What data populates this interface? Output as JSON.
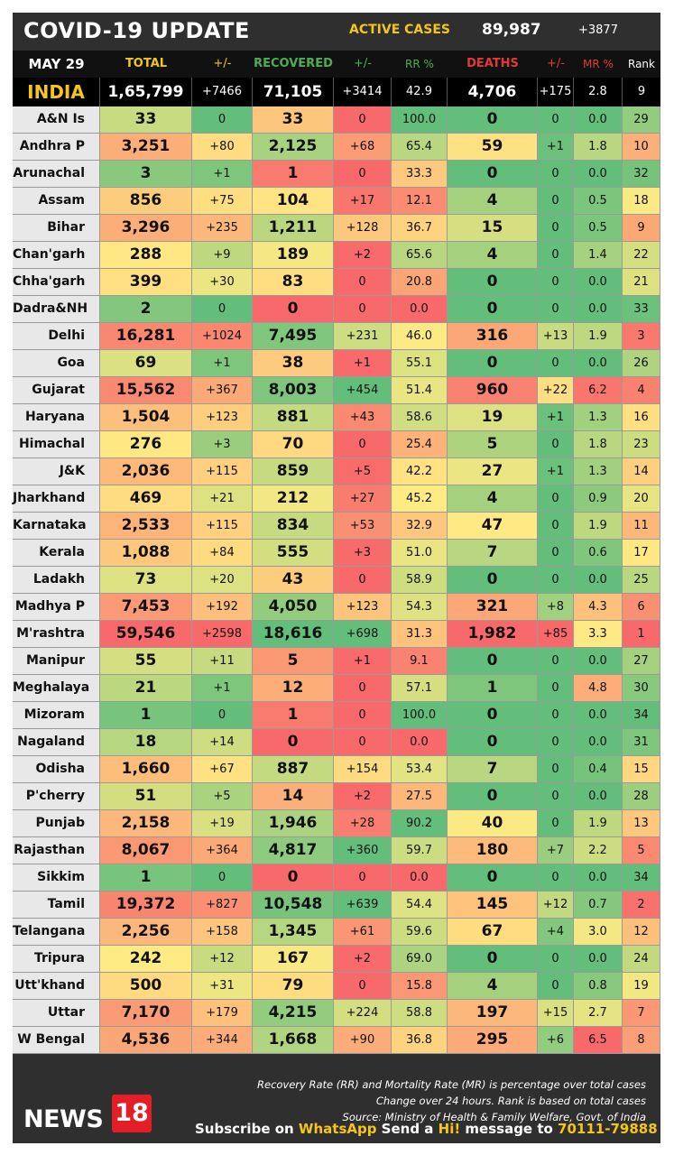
{
  "header": {
    "title": "COVID-19 UPDATE",
    "active_label": "ACTIVE CASES",
    "active_value": "89,987",
    "active_change": "+3877"
  },
  "columns": {
    "date": "MAY 29",
    "total": "TOTAL",
    "total_change": "+/-",
    "recovered": "RECOVERED",
    "recovered_change": "+/-",
    "rr": "RR %",
    "deaths": "DEATHS",
    "deaths_change": "+/-",
    "mr": "MR %",
    "rank": "Rank"
  },
  "colors": {
    "header_yellow": "#f5c518",
    "recovered_green": "#4caf50",
    "deaths_red": "#e53935",
    "scale_green": "#63be7b",
    "scale_yellow": "#ffeb84",
    "scale_red": "#f8696b"
  },
  "chart_data": {
    "type": "table",
    "title": "COVID-19 UPDATE",
    "india": {
      "name": "INDIA",
      "total": "1,65,799",
      "total_change": "+7466",
      "recovered": "71,105",
      "recovered_change": "+3414",
      "rr": "42.9",
      "deaths": "4,706",
      "deaths_change": "+175",
      "mr": "2.8",
      "rank": "9"
    },
    "rows": [
      {
        "name": "A&N Is",
        "total": "33",
        "total_change": "0",
        "recovered": "33",
        "recovered_change": "0",
        "rr": "100.0",
        "deaths": "0",
        "deaths_change": "0",
        "mr": "0.0",
        "rank": "29"
      },
      {
        "name": "Andhra P",
        "total": "3,251",
        "total_change": "+80",
        "recovered": "2,125",
        "recovered_change": "+68",
        "rr": "65.4",
        "deaths": "59",
        "deaths_change": "+1",
        "mr": "1.8",
        "rank": "10"
      },
      {
        "name": "Arunachal",
        "total": "3",
        "total_change": "+1",
        "recovered": "1",
        "recovered_change": "0",
        "rr": "33.3",
        "deaths": "0",
        "deaths_change": "0",
        "mr": "0.0",
        "rank": "32"
      },
      {
        "name": "Assam",
        "total": "856",
        "total_change": "+75",
        "recovered": "104",
        "recovered_change": "+17",
        "rr": "12.1",
        "deaths": "4",
        "deaths_change": "0",
        "mr": "0.5",
        "rank": "18"
      },
      {
        "name": "Bihar",
        "total": "3,296",
        "total_change": "+235",
        "recovered": "1,211",
        "recovered_change": "+128",
        "rr": "36.7",
        "deaths": "15",
        "deaths_change": "0",
        "mr": "0.5",
        "rank": "9"
      },
      {
        "name": "Chan'garh",
        "total": "288",
        "total_change": "+9",
        "recovered": "189",
        "recovered_change": "+2",
        "rr": "65.6",
        "deaths": "4",
        "deaths_change": "0",
        "mr": "1.4",
        "rank": "22"
      },
      {
        "name": "Chha'garh",
        "total": "399",
        "total_change": "+30",
        "recovered": "83",
        "recovered_change": "0",
        "rr": "20.8",
        "deaths": "0",
        "deaths_change": "0",
        "mr": "0.0",
        "rank": "21"
      },
      {
        "name": "Dadra&NH",
        "total": "2",
        "total_change": "0",
        "recovered": "0",
        "recovered_change": "0",
        "rr": "0.0",
        "deaths": "0",
        "deaths_change": "0",
        "mr": "0.0",
        "rank": "33"
      },
      {
        "name": "Delhi",
        "total": "16,281",
        "total_change": "+1024",
        "recovered": "7,495",
        "recovered_change": "+231",
        "rr": "46.0",
        "deaths": "316",
        "deaths_change": "+13",
        "mr": "1.9",
        "rank": "3"
      },
      {
        "name": "Goa",
        "total": "69",
        "total_change": "+1",
        "recovered": "38",
        "recovered_change": "+1",
        "rr": "55.1",
        "deaths": "0",
        "deaths_change": "0",
        "mr": "0.0",
        "rank": "26"
      },
      {
        "name": "Gujarat",
        "total": "15,562",
        "total_change": "+367",
        "recovered": "8,003",
        "recovered_change": "+454",
        "rr": "51.4",
        "deaths": "960",
        "deaths_change": "+22",
        "mr": "6.2",
        "rank": "4"
      },
      {
        "name": "Haryana",
        "total": "1,504",
        "total_change": "+123",
        "recovered": "881",
        "recovered_change": "+43",
        "rr": "58.6",
        "deaths": "19",
        "deaths_change": "+1",
        "mr": "1.3",
        "rank": "16"
      },
      {
        "name": "Himachal",
        "total": "276",
        "total_change": "+3",
        "recovered": "70",
        "recovered_change": "0",
        "rr": "25.4",
        "deaths": "5",
        "deaths_change": "0",
        "mr": "1.8",
        "rank": "23"
      },
      {
        "name": "J&K",
        "total": "2,036",
        "total_change": "+115",
        "recovered": "859",
        "recovered_change": "+5",
        "rr": "42.2",
        "deaths": "27",
        "deaths_change": "+1",
        "mr": "1.3",
        "rank": "14"
      },
      {
        "name": "Jharkhand",
        "total": "469",
        "total_change": "+21",
        "recovered": "212",
        "recovered_change": "+27",
        "rr": "45.2",
        "deaths": "4",
        "deaths_change": "0",
        "mr": "0.9",
        "rank": "20"
      },
      {
        "name": "Karnataka",
        "total": "2,533",
        "total_change": "+115",
        "recovered": "834",
        "recovered_change": "+53",
        "rr": "32.9",
        "deaths": "47",
        "deaths_change": "0",
        "mr": "1.9",
        "rank": "11"
      },
      {
        "name": "Kerala",
        "total": "1,088",
        "total_change": "+84",
        "recovered": "555",
        "recovered_change": "+3",
        "rr": "51.0",
        "deaths": "7",
        "deaths_change": "0",
        "mr": "0.6",
        "rank": "17"
      },
      {
        "name": "Ladakh",
        "total": "73",
        "total_change": "+20",
        "recovered": "43",
        "recovered_change": "0",
        "rr": "58.9",
        "deaths": "0",
        "deaths_change": "0",
        "mr": "0.0",
        "rank": "25"
      },
      {
        "name": "Madhya P",
        "total": "7,453",
        "total_change": "+192",
        "recovered": "4,050",
        "recovered_change": "+123",
        "rr": "54.3",
        "deaths": "321",
        "deaths_change": "+8",
        "mr": "4.3",
        "rank": "6"
      },
      {
        "name": "M'rashtra",
        "total": "59,546",
        "total_change": "+2598",
        "recovered": "18,616",
        "recovered_change": "+698",
        "rr": "31.3",
        "deaths": "1,982",
        "deaths_change": "+85",
        "mr": "3.3",
        "rank": "1"
      },
      {
        "name": "Manipur",
        "total": "55",
        "total_change": "+11",
        "recovered": "5",
        "recovered_change": "+1",
        "rr": "9.1",
        "deaths": "0",
        "deaths_change": "0",
        "mr": "0.0",
        "rank": "27"
      },
      {
        "name": "Meghalaya",
        "total": "21",
        "total_change": "+1",
        "recovered": "12",
        "recovered_change": "0",
        "rr": "57.1",
        "deaths": "1",
        "deaths_change": "0",
        "mr": "4.8",
        "rank": "30"
      },
      {
        "name": "Mizoram",
        "total": "1",
        "total_change": "0",
        "recovered": "1",
        "recovered_change": "0",
        "rr": "100.0",
        "deaths": "0",
        "deaths_change": "0",
        "mr": "0.0",
        "rank": "34"
      },
      {
        "name": "Nagaland",
        "total": "18",
        "total_change": "+14",
        "recovered": "0",
        "recovered_change": "0",
        "rr": "0.0",
        "deaths": "0",
        "deaths_change": "0",
        "mr": "0.0",
        "rank": "31"
      },
      {
        "name": "Odisha",
        "total": "1,660",
        "total_change": "+67",
        "recovered": "887",
        "recovered_change": "+154",
        "rr": "53.4",
        "deaths": "7",
        "deaths_change": "0",
        "mr": "0.4",
        "rank": "15"
      },
      {
        "name": "P'cherry",
        "total": "51",
        "total_change": "+5",
        "recovered": "14",
        "recovered_change": "+2",
        "rr": "27.5",
        "deaths": "0",
        "deaths_change": "0",
        "mr": "0.0",
        "rank": "28"
      },
      {
        "name": "Punjab",
        "total": "2,158",
        "total_change": "+19",
        "recovered": "1,946",
        "recovered_change": "+28",
        "rr": "90.2",
        "deaths": "40",
        "deaths_change": "0",
        "mr": "1.9",
        "rank": "13"
      },
      {
        "name": "Rajasthan",
        "total": "8,067",
        "total_change": "+364",
        "recovered": "4,817",
        "recovered_change": "+360",
        "rr": "59.7",
        "deaths": "180",
        "deaths_change": "+7",
        "mr": "2.2",
        "rank": "5"
      },
      {
        "name": "Sikkim",
        "total": "1",
        "total_change": "0",
        "recovered": "0",
        "recovered_change": "0",
        "rr": "0.0",
        "deaths": "0",
        "deaths_change": "0",
        "mr": "0.0",
        "rank": "34"
      },
      {
        "name": "Tamil Nadu",
        "total": "19,372",
        "total_change": "+827",
        "recovered": "10,548",
        "recovered_change": "+639",
        "rr": "54.4",
        "deaths": "145",
        "deaths_change": "+12",
        "mr": "0.7",
        "rank": "2"
      },
      {
        "name": "Telangana",
        "total": "2,256",
        "total_change": "+158",
        "recovered": "1,345",
        "recovered_change": "+61",
        "rr": "59.6",
        "deaths": "67",
        "deaths_change": "+4",
        "mr": "3.0",
        "rank": "12"
      },
      {
        "name": "Tripura",
        "total": "242",
        "total_change": "+12",
        "recovered": "167",
        "recovered_change": "+2",
        "rr": "69.0",
        "deaths": "0",
        "deaths_change": "0",
        "mr": "0.0",
        "rank": "24"
      },
      {
        "name": "Utt'khand",
        "total": "500",
        "total_change": "+31",
        "recovered": "79",
        "recovered_change": "0",
        "rr": "15.8",
        "deaths": "4",
        "deaths_change": "0",
        "mr": "0.8",
        "rank": "19"
      },
      {
        "name": "Uttar Prad",
        "total": "7,170",
        "total_change": "+179",
        "recovered": "4,215",
        "recovered_change": "+224",
        "rr": "58.8",
        "deaths": "197",
        "deaths_change": "+15",
        "mr": "2.7",
        "rank": "7"
      },
      {
        "name": "W Bengal",
        "total": "4,536",
        "total_change": "+344",
        "recovered": "1,668",
        "recovered_change": "+90",
        "rr": "36.8",
        "deaths": "295",
        "deaths_change": "+6",
        "mr": "6.5",
        "rank": "8"
      }
    ]
  },
  "footer": {
    "note1": "Recovery Rate (RR) and Mortality Rate (MR) is percentage over total cases",
    "note2": "Change over 24 hours. Rank is based on total cases",
    "note3": "Source: Ministry of Health & Family Welfare, Govt. of India",
    "subscribe_pre": "Subscribe on ",
    "subscribe_app": "WhatsApp",
    "subscribe_mid": " Send a ",
    "subscribe_hi": "Hi!",
    "subscribe_post": " message to ",
    "subscribe_number": "70111-79888",
    "logo_text": "NEWS",
    "logo_num": "18"
  }
}
